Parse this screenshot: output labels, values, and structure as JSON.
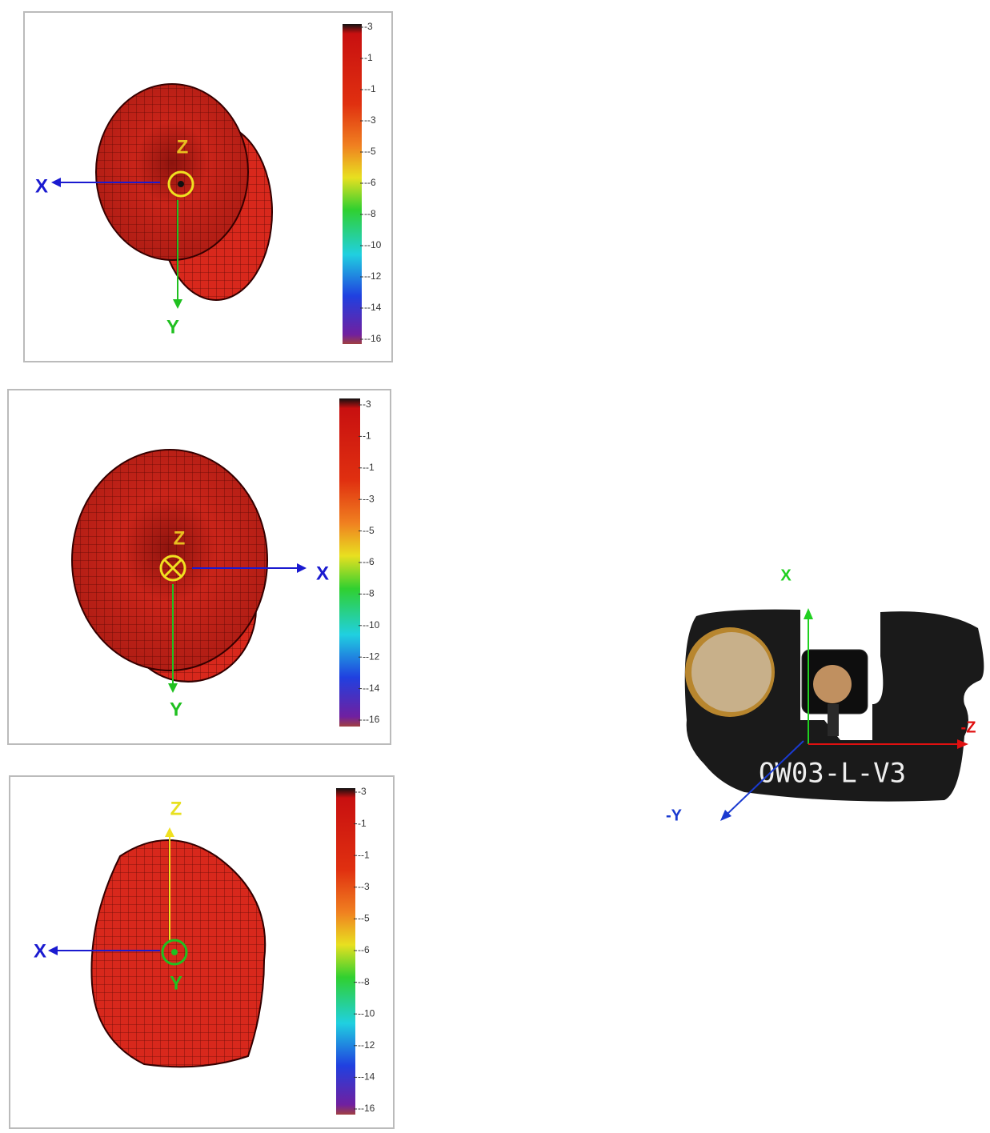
{
  "panels": [
    {
      "axes": [
        "Z",
        "X",
        "Y"
      ],
      "colorbar": [
        "-3",
        "-1",
        "--1",
        "--3",
        "--5",
        "--6",
        "--8",
        "--10",
        "--12",
        "--14",
        "--16"
      ]
    },
    {
      "axes": [
        "Z",
        "X",
        "Y"
      ],
      "colorbar": [
        "-3",
        "-1",
        "--1",
        "--3",
        "--5",
        "--6",
        "--8",
        "--10",
        "--12",
        "--14",
        "--16"
      ]
    },
    {
      "axes": [
        "Z",
        "X",
        "Y"
      ],
      "colorbar": [
        "-3",
        "-1",
        "--1",
        "--3",
        "--5",
        "--6",
        "--8",
        "--10",
        "--12",
        "--14",
        "--16"
      ]
    }
  ],
  "photo": {
    "board_label": "OW03-L-V3",
    "axes": [
      "X",
      "-Z",
      "-Y"
    ]
  }
}
